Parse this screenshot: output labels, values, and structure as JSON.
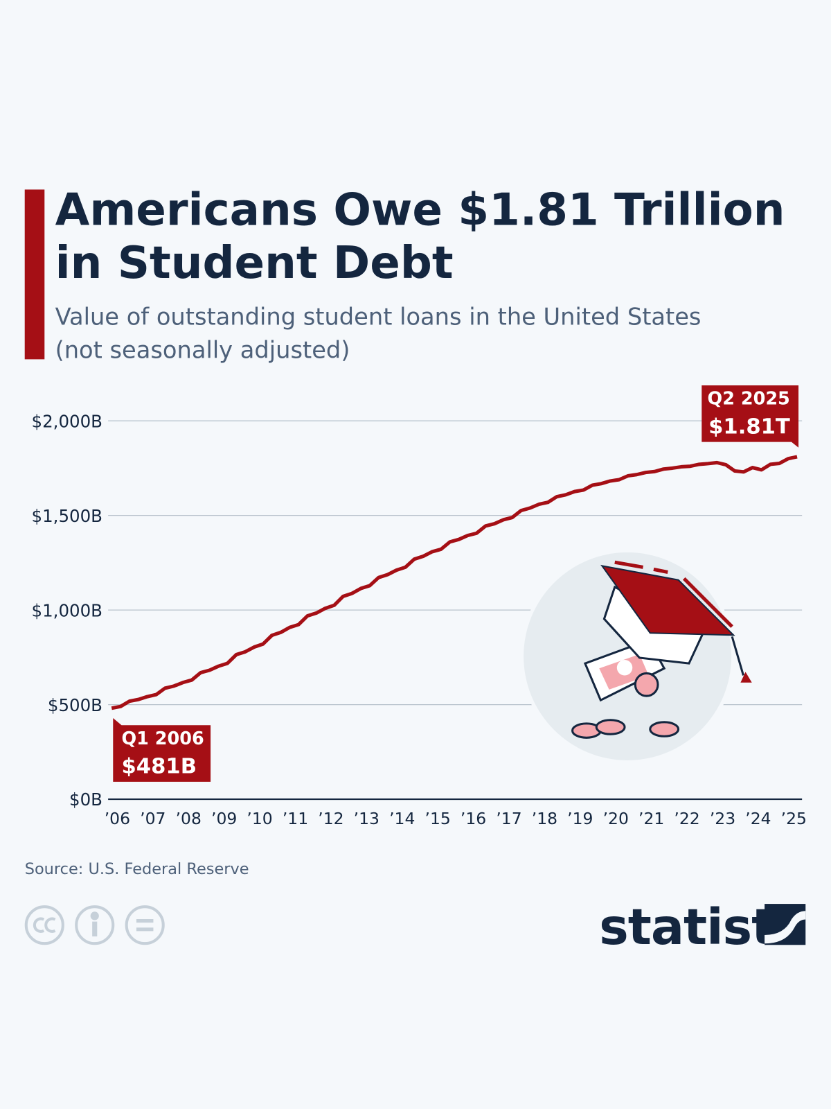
{
  "chart_data": {
    "type": "line",
    "title": [
      "Americans Owe $1.81 Trillion",
      "in Student Debt"
    ],
    "subtitle": [
      "Value of outstanding student loans in the United States",
      "(not seasonally adjusted)"
    ],
    "source": "Source: U.S. Federal Reserve",
    "brand": "statista",
    "color": "#a50f15",
    "x": [
      2006,
      2006.25,
      2006.5,
      2006.75,
      2007,
      2007.25,
      2007.5,
      2007.75,
      2008,
      2008.25,
      2008.5,
      2008.75,
      2009,
      2009.25,
      2009.5,
      2009.75,
      2010,
      2010.25,
      2010.5,
      2010.75,
      2011,
      2011.25,
      2011.5,
      2011.75,
      2012,
      2012.25,
      2012.5,
      2012.75,
      2013,
      2013.25,
      2013.5,
      2013.75,
      2014,
      2014.25,
      2014.5,
      2014.75,
      2015,
      2015.25,
      2015.5,
      2015.75,
      2016,
      2016.25,
      2016.5,
      2016.75,
      2017,
      2017.25,
      2017.5,
      2017.75,
      2018,
      2018.25,
      2018.5,
      2018.75,
      2019,
      2019.25,
      2019.5,
      2019.75,
      2020,
      2020.25,
      2020.5,
      2020.75,
      2021,
      2021.25,
      2021.5,
      2021.75,
      2022,
      2022.25,
      2022.5,
      2022.75,
      2023,
      2023.25,
      2023.5,
      2023.75,
      2024,
      2024.25,
      2024.5,
      2024.75,
      2025,
      2025.25
    ],
    "values": [
      481,
      490,
      518,
      527,
      542,
      553,
      587,
      598,
      617,
      630,
      669,
      682,
      703,
      718,
      764,
      779,
      804,
      820,
      866,
      882,
      908,
      923,
      969,
      984,
      1009,
      1025,
      1072,
      1088,
      1114,
      1129,
      1172,
      1187,
      1211,
      1226,
      1269,
      1284,
      1308,
      1321,
      1360,
      1373,
      1394,
      1406,
      1444,
      1456,
      1477,
      1489,
      1526,
      1539,
      1559,
      1569,
      1599,
      1609,
      1626,
      1634,
      1660,
      1668,
      1682,
      1689,
      1709,
      1716,
      1727,
      1732,
      1745,
      1750,
      1757,
      1760,
      1770,
      1774,
      1779,
      1768,
      1735,
      1730,
      1753,
      1741,
      1770,
      1775,
      1800,
      1810
    ],
    "xlim": [
      2006,
      2025.25
    ],
    "xticks": [
      {
        "value": 2006,
        "label": "’06"
      },
      {
        "value": 2007,
        "label": "’07"
      },
      {
        "value": 2008,
        "label": "’08"
      },
      {
        "value": 2009,
        "label": "’09"
      },
      {
        "value": 2010,
        "label": "’10"
      },
      {
        "value": 2011,
        "label": "’11"
      },
      {
        "value": 2012,
        "label": "’12"
      },
      {
        "value": 2013,
        "label": "’13"
      },
      {
        "value": 2014,
        "label": "’14"
      },
      {
        "value": 2015,
        "label": "’15"
      },
      {
        "value": 2016,
        "label": "’16"
      },
      {
        "value": 2017,
        "label": "’17"
      },
      {
        "value": 2018,
        "label": "’18"
      },
      {
        "value": 2019,
        "label": "’19"
      },
      {
        "value": 2020,
        "label": "’20"
      },
      {
        "value": 2021,
        "label": "’21"
      },
      {
        "value": 2022,
        "label": "’22"
      },
      {
        "value": 2023,
        "label": "’23"
      },
      {
        "value": 2024,
        "label": "’24"
      },
      {
        "value": 2025,
        "label": "’25"
      }
    ],
    "ylim": [
      0,
      2000
    ],
    "yticks": [
      {
        "value": 0,
        "label": "$0B"
      },
      {
        "value": 500,
        "label": "$500B"
      },
      {
        "value": 1000,
        "label": "$1,000B"
      },
      {
        "value": 1500,
        "label": "$1,500B"
      },
      {
        "value": 2000,
        "label": "$2,000B"
      }
    ],
    "grid": true,
    "annotations": [
      {
        "period": "Q1 2006",
        "value_label": "$481B",
        "index": 0
      },
      {
        "period": "Q2 2025",
        "value_label": "$1.81T",
        "index": 77
      }
    ]
  }
}
